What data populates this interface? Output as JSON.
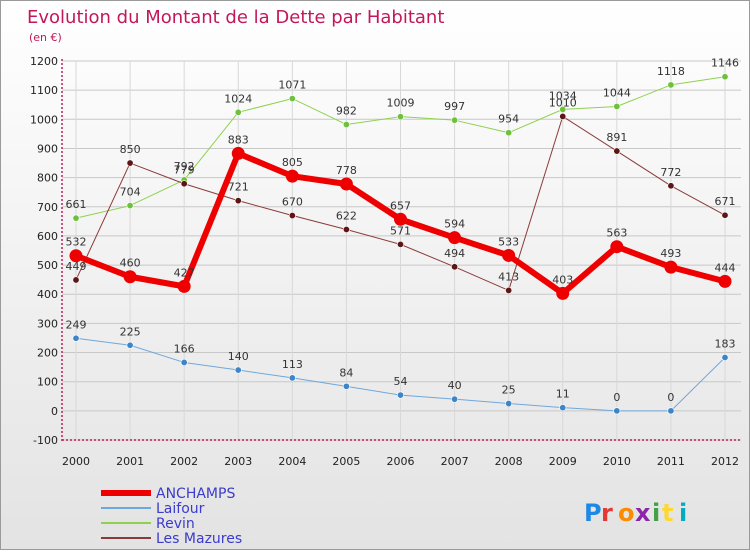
{
  "chart_data": {
    "type": "line",
    "title": "Evolution du Montant de la Dette par Habitant",
    "subtitle": "(en €)",
    "xlabel": "",
    "ylabel": "",
    "x": [
      "2000",
      "2001",
      "2002",
      "2003",
      "2004",
      "2005",
      "2006",
      "2007",
      "2008",
      "2009",
      "2010",
      "2011",
      "2012"
    ],
    "ylim": [
      -100,
      1200
    ],
    "yticks": [
      -100,
      0,
      100,
      200,
      300,
      400,
      500,
      600,
      700,
      800,
      900,
      1000,
      1100,
      1200
    ],
    "grid": true,
    "legend_position": "bottom-left",
    "series": [
      {
        "name": "Revin",
        "color": "#8fd14f",
        "point_color": "#6cc23a",
        "width": 1,
        "values": [
          661,
          704,
          792,
          1024,
          1071,
          982,
          1009,
          997,
          954,
          1034,
          1044,
          1118,
          1146
        ]
      },
      {
        "name": "Les Mazures",
        "color": "#8b3a3a",
        "point_color": "#5c1616",
        "width": 1,
        "values": [
          449,
          850,
          779,
          721,
          670,
          622,
          571,
          494,
          413,
          1010,
          891,
          772,
          671
        ]
      },
      {
        "name": "Laifour",
        "color": "#6fa8dc",
        "point_color": "#3d85c6",
        "width": 1,
        "values": [
          249,
          225,
          166,
          140,
          113,
          84,
          54,
          40,
          25,
          11,
          0,
          0,
          183
        ]
      },
      {
        "name": "ANCHAMPS",
        "color": "#ee0000",
        "point_color": "#ee0000",
        "width": 6,
        "values": [
          532,
          460,
          427,
          883,
          805,
          778,
          657,
          594,
          533,
          403,
          563,
          493,
          444
        ]
      }
    ],
    "legend_order": [
      "ANCHAMPS",
      "Laifour",
      "Revin",
      "Les Mazures"
    ]
  },
  "branding": {
    "logo_text": "Proxiti"
  }
}
